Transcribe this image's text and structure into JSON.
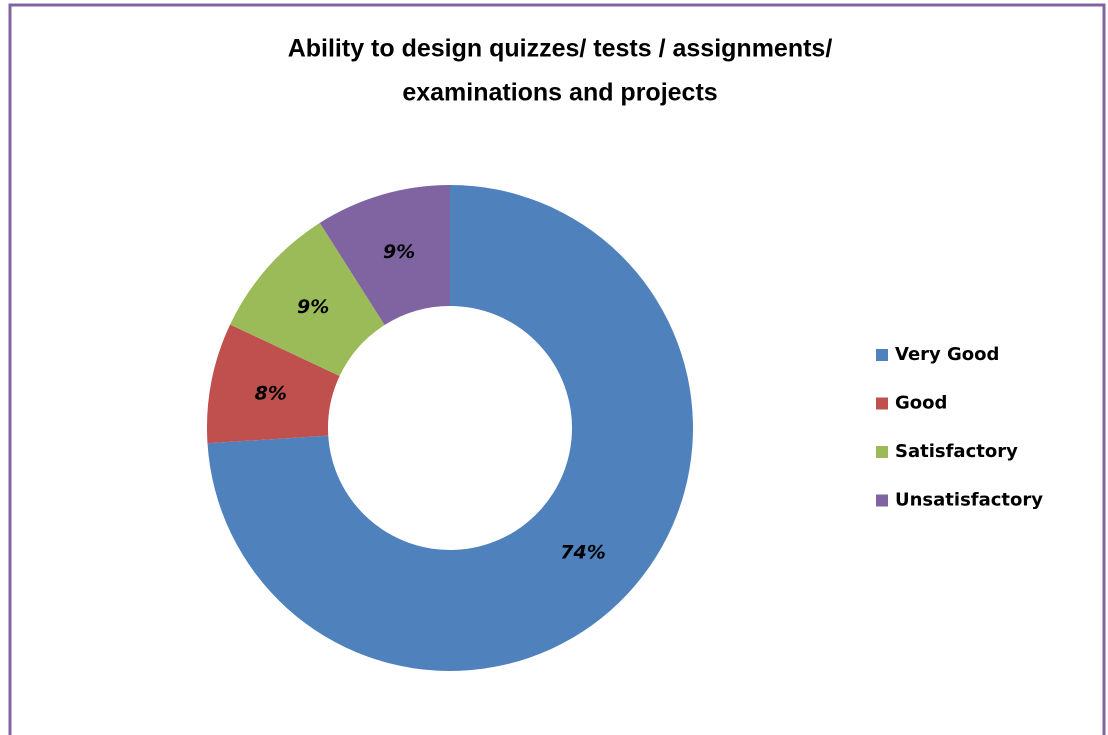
{
  "chart_data": {
    "type": "donut",
    "title": [
      "Ability to design quizzes/ tests / assignments/",
      "examinations and projects"
    ],
    "categories": [
      "Very Good",
      "Good",
      "Satisfactory",
      "Unsatisfactory"
    ],
    "values": [
      74,
      8,
      9,
      9
    ],
    "value_labels": [
      "74%",
      "8%",
      "9%",
      "9%"
    ],
    "colors": [
      "#4f81bd",
      "#c0504d",
      "#9bbb59",
      "#8064a2"
    ],
    "legend": "right"
  }
}
